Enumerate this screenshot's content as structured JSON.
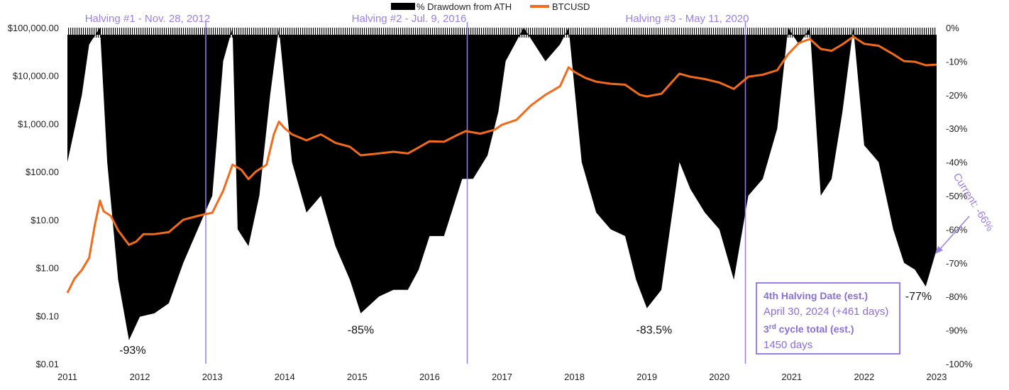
{
  "chart_data": {
    "type": "area",
    "title": "",
    "legend": {
      "placement": "top-center",
      "entries": [
        {
          "label": "% Drawdown from ATH",
          "color": "#000000"
        },
        {
          "label": "BTCUSD",
          "color": "#f26a1b"
        }
      ]
    },
    "x_ticks": [
      "2011",
      "2012",
      "2013",
      "2014",
      "2015",
      "2016",
      "2017",
      "2018",
      "2019",
      "2020",
      "2021",
      "2022",
      "2023"
    ],
    "x_range": [
      2011,
      2023
    ],
    "y_left": {
      "scale": "log",
      "range": [
        0.01,
        100000
      ],
      "ticks": [
        "$100,000.00",
        "$10,000.00",
        "$1,000.00",
        "$100.00",
        "$10.00",
        "$1.00",
        "$0.10",
        "$0.01"
      ]
    },
    "y_right": {
      "scale": "linear",
      "range": [
        -100,
        0
      ],
      "ticks": [
        "0%",
        "-10%",
        "-20%",
        "-30%",
        "-40%",
        "-50%",
        "-60%",
        "-70%",
        "-80%",
        "-90%",
        "-100%"
      ]
    },
    "series": [
      {
        "name": "BTCUSD",
        "axis": "left",
        "color": "#f26a1b",
        "points": [
          [
            2011.0,
            0.3
          ],
          [
            2011.1,
            0.6
          ],
          [
            2011.2,
            0.9
          ],
          [
            2011.3,
            1.6
          ],
          [
            2011.38,
            8
          ],
          [
            2011.45,
            25
          ],
          [
            2011.5,
            15
          ],
          [
            2011.6,
            12
          ],
          [
            2011.7,
            6
          ],
          [
            2011.85,
            3
          ],
          [
            2011.95,
            3.5
          ],
          [
            2012.05,
            5
          ],
          [
            2012.2,
            5
          ],
          [
            2012.4,
            5.5
          ],
          [
            2012.6,
            10
          ],
          [
            2012.8,
            12
          ],
          [
            2012.9,
            13
          ],
          [
            2013.0,
            14
          ],
          [
            2013.15,
            40
          ],
          [
            2013.28,
            140
          ],
          [
            2013.4,
            110
          ],
          [
            2013.5,
            70
          ],
          [
            2013.6,
            100
          ],
          [
            2013.75,
            140
          ],
          [
            2013.85,
            600
          ],
          [
            2013.92,
            1100
          ],
          [
            2014.0,
            800
          ],
          [
            2014.1,
            600
          ],
          [
            2014.3,
            450
          ],
          [
            2014.5,
            600
          ],
          [
            2014.7,
            400
          ],
          [
            2014.9,
            330
          ],
          [
            2015.05,
            220
          ],
          [
            2015.3,
            240
          ],
          [
            2015.5,
            260
          ],
          [
            2015.7,
            240
          ],
          [
            2015.85,
            320
          ],
          [
            2016.0,
            430
          ],
          [
            2016.2,
            420
          ],
          [
            2016.4,
            600
          ],
          [
            2016.5,
            700
          ],
          [
            2016.7,
            620
          ],
          [
            2016.9,
            750
          ],
          [
            2017.0,
            950
          ],
          [
            2017.2,
            1200
          ],
          [
            2017.4,
            2400
          ],
          [
            2017.6,
            4000
          ],
          [
            2017.8,
            6000
          ],
          [
            2017.92,
            15000
          ],
          [
            2018.0,
            12000
          ],
          [
            2018.15,
            9000
          ],
          [
            2018.3,
            7500
          ],
          [
            2018.5,
            6800
          ],
          [
            2018.7,
            6500
          ],
          [
            2018.9,
            4000
          ],
          [
            2019.0,
            3700
          ],
          [
            2019.2,
            4200
          ],
          [
            2019.45,
            11000
          ],
          [
            2019.6,
            9500
          ],
          [
            2019.8,
            8500
          ],
          [
            2020.0,
            7200
          ],
          [
            2020.2,
            5300
          ],
          [
            2020.4,
            9500
          ],
          [
            2020.6,
            10500
          ],
          [
            2020.8,
            13000
          ],
          [
            2020.95,
            28000
          ],
          [
            2021.1,
            48000
          ],
          [
            2021.25,
            58000
          ],
          [
            2021.4,
            36000
          ],
          [
            2021.55,
            33000
          ],
          [
            2021.7,
            45000
          ],
          [
            2021.85,
            65000
          ],
          [
            2022.0,
            46000
          ],
          [
            2022.2,
            42000
          ],
          [
            2022.4,
            28000
          ],
          [
            2022.55,
            20000
          ],
          [
            2022.7,
            19500
          ],
          [
            2022.85,
            16500
          ],
          [
            2023.0,
            17000
          ]
        ]
      },
      {
        "name": "% Drawdown from ATH",
        "axis": "right",
        "color": "#000000",
        "points": [
          [
            2011.0,
            -40
          ],
          [
            2011.1,
            -30
          ],
          [
            2011.2,
            -20
          ],
          [
            2011.3,
            -5
          ],
          [
            2011.45,
            0
          ],
          [
            2011.55,
            -40
          ],
          [
            2011.7,
            -75
          ],
          [
            2011.85,
            -93
          ],
          [
            2012.0,
            -86
          ],
          [
            2012.2,
            -85
          ],
          [
            2012.4,
            -82
          ],
          [
            2012.6,
            -70
          ],
          [
            2012.8,
            -60
          ],
          [
            2013.0,
            -50
          ],
          [
            2013.15,
            -10
          ],
          [
            2013.28,
            0
          ],
          [
            2013.35,
            -60
          ],
          [
            2013.5,
            -65
          ],
          [
            2013.65,
            -50
          ],
          [
            2013.8,
            -20
          ],
          [
            2013.92,
            0
          ],
          [
            2014.1,
            -40
          ],
          [
            2014.3,
            -55
          ],
          [
            2014.5,
            -50
          ],
          [
            2014.7,
            -65
          ],
          [
            2014.9,
            -75
          ],
          [
            2015.05,
            -85
          ],
          [
            2015.3,
            -80
          ],
          [
            2015.5,
            -78
          ],
          [
            2015.7,
            -78
          ],
          [
            2015.85,
            -72
          ],
          [
            2016.0,
            -62
          ],
          [
            2016.2,
            -62
          ],
          [
            2016.45,
            -45
          ],
          [
            2016.6,
            -45
          ],
          [
            2016.8,
            -38
          ],
          [
            2016.95,
            -25
          ],
          [
            2017.05,
            -10
          ],
          [
            2017.3,
            0
          ],
          [
            2017.6,
            -10
          ],
          [
            2017.8,
            -5
          ],
          [
            2017.92,
            0
          ],
          [
            2018.1,
            -40
          ],
          [
            2018.3,
            -55
          ],
          [
            2018.5,
            -60
          ],
          [
            2018.7,
            -62
          ],
          [
            2018.85,
            -75
          ],
          [
            2019.0,
            -83.5
          ],
          [
            2019.2,
            -78
          ],
          [
            2019.45,
            -40
          ],
          [
            2019.6,
            -48
          ],
          [
            2019.8,
            -55
          ],
          [
            2020.0,
            -60
          ],
          [
            2020.2,
            -75
          ],
          [
            2020.4,
            -50
          ],
          [
            2020.6,
            -45
          ],
          [
            2020.8,
            -30
          ],
          [
            2020.95,
            0
          ],
          [
            2021.1,
            -5
          ],
          [
            2021.25,
            0
          ],
          [
            2021.4,
            -50
          ],
          [
            2021.55,
            -45
          ],
          [
            2021.7,
            -25
          ],
          [
            2021.85,
            0
          ],
          [
            2022.0,
            -35
          ],
          [
            2022.2,
            -40
          ],
          [
            2022.4,
            -60
          ],
          [
            2022.55,
            -70
          ],
          [
            2022.7,
            -72
          ],
          [
            2022.85,
            -77
          ],
          [
            2023.0,
            -66
          ]
        ]
      }
    ],
    "annotations": {
      "halvings": [
        {
          "x": 2012.91,
          "label": "Halving #1 - Nov. 28, 2012"
        },
        {
          "x": 2016.52,
          "label": "Halving #2 - Jul. 9, 2016"
        },
        {
          "x": 2020.36,
          "label": "Halving #3 - May 11, 2020"
        }
      ],
      "troughs": [
        {
          "x": 2011.9,
          "y": -96,
          "label": "-93%"
        },
        {
          "x": 2015.05,
          "y": -90,
          "label": "-85%"
        },
        {
          "x": 2019.1,
          "y": -90,
          "label": "-83.5%"
        },
        {
          "x": 2022.75,
          "y": -80,
          "label": "-77%"
        }
      ],
      "current": {
        "label": "Current: -66%",
        "value": -66
      },
      "info_box": {
        "title1": "4th Halving Date (est.)",
        "line1": "April 30, 2024 (+461 days)",
        "title2_prefix": "3",
        "title2_sup": "rd",
        "title2_suffix": " cycle total (est.)",
        "line2": "1450 days"
      }
    }
  }
}
